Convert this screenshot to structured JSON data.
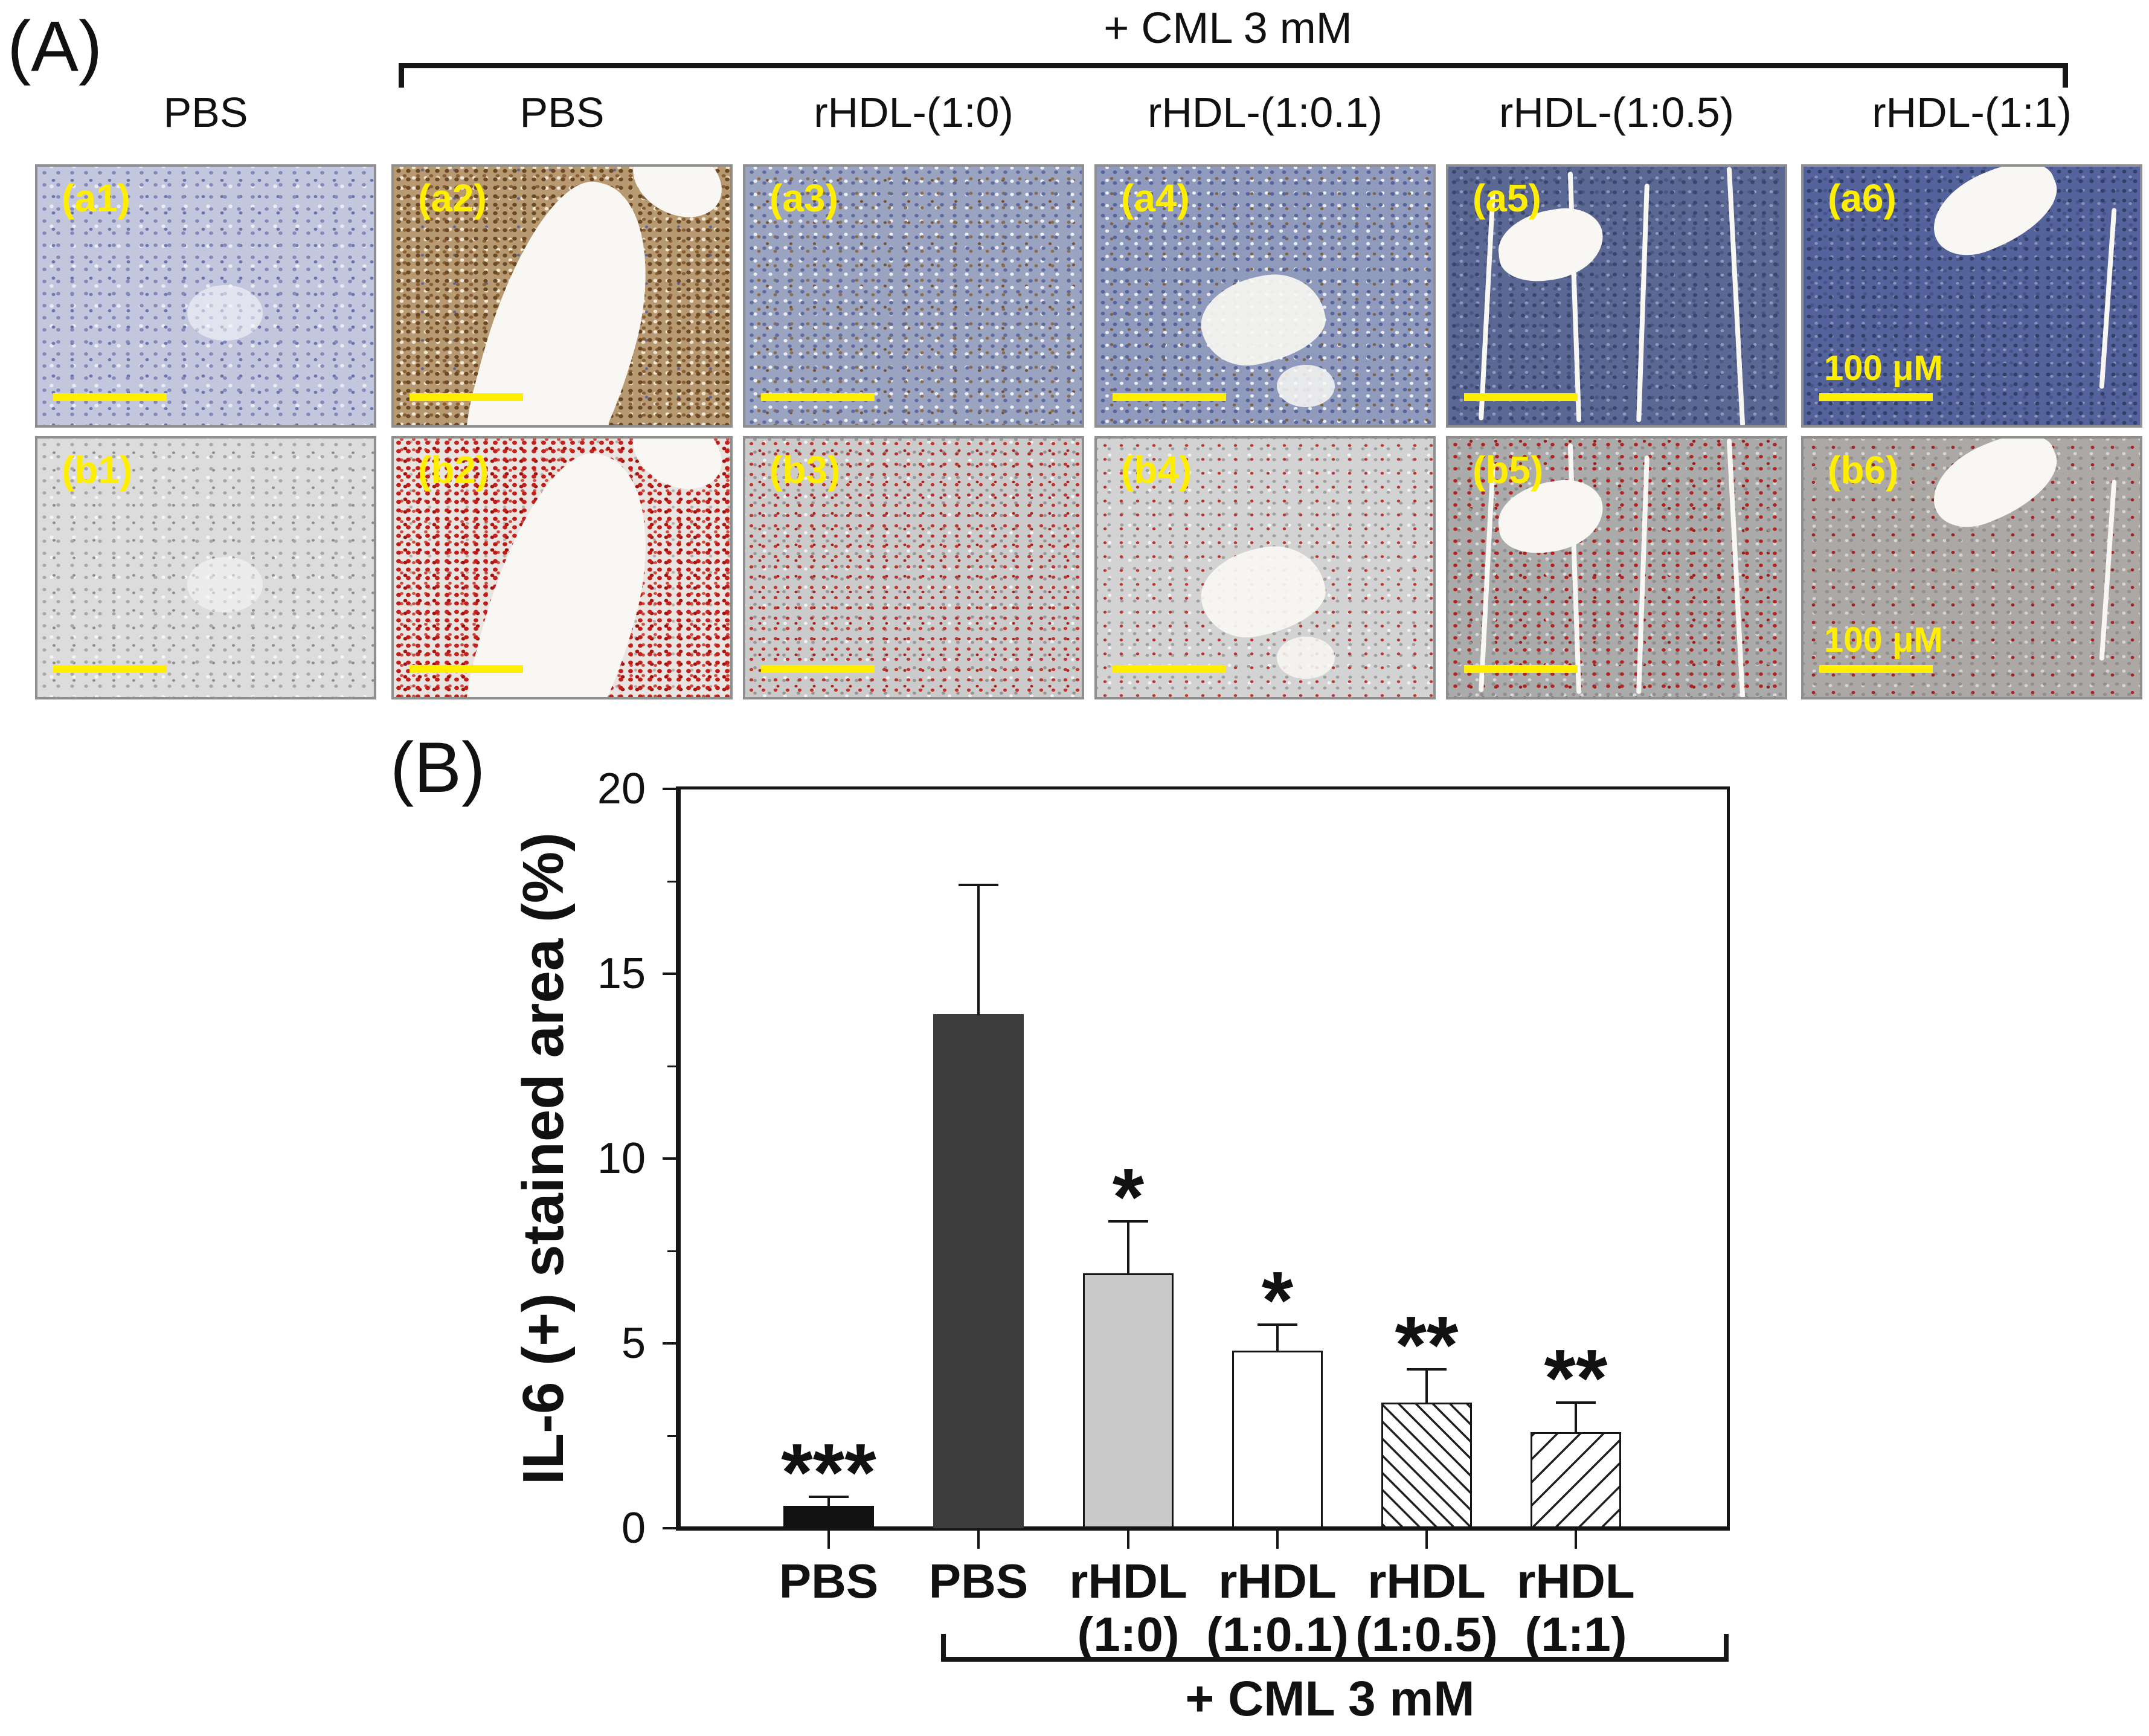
{
  "panel_a": {
    "label": "(A)",
    "group_label": "+ CML 3 mM",
    "column_headers": [
      "PBS",
      "PBS",
      "rHDL-(1:0)",
      "rHDL-(1:0.1)",
      "rHDL-(1:0.5)",
      "rHDL-(1:1)"
    ],
    "scale_bar_text": "100 μM",
    "rows": [
      {
        "id": "a",
        "cells": [
          {
            "id": "a1",
            "label": "(a1)"
          },
          {
            "id": "a2",
            "label": "(a2)"
          },
          {
            "id": "a3",
            "label": "(a3)"
          },
          {
            "id": "a4",
            "label": "(a4)"
          },
          {
            "id": "a5",
            "label": "(a5)"
          },
          {
            "id": "a6",
            "label": "(a6)",
            "show_scale_text": true
          }
        ]
      },
      {
        "id": "b",
        "cells": [
          {
            "id": "b1",
            "label": "(b1)"
          },
          {
            "id": "b2",
            "label": "(b2)"
          },
          {
            "id": "b3",
            "label": "(b3)"
          },
          {
            "id": "b4",
            "label": "(b4)"
          },
          {
            "id": "b5",
            "label": "(b5)"
          },
          {
            "id": "b6",
            "label": "(b6)",
            "show_scale_text": true
          }
        ]
      }
    ],
    "colors": {
      "annotation_yellow": "#ffee00"
    }
  },
  "panel_b": {
    "label": "(B)"
  },
  "chart_data": {
    "type": "bar",
    "title": "",
    "ylabel": "IL-6 (+) stained area (%)",
    "xlabel": "",
    "ylim": [
      0,
      20
    ],
    "yticks": [
      0,
      5,
      10,
      15,
      20
    ],
    "minor_yticks": [
      2.5,
      7.5,
      12.5,
      17.5
    ],
    "categories_line1": [
      "PBS",
      "PBS",
      "rHDL",
      "rHDL",
      "rHDL",
      "rHDL"
    ],
    "categories_line2": [
      "",
      "",
      "(1:0)",
      "(1:0.1)",
      "(1:0.5)",
      "(1:1)"
    ],
    "values": [
      0.6,
      13.9,
      6.9,
      4.8,
      3.4,
      2.6
    ],
    "errors": [
      0.25,
      3.5,
      1.4,
      0.7,
      0.9,
      0.8
    ],
    "significance": [
      "***",
      "",
      "*",
      "*",
      "**",
      "**"
    ],
    "bar_styles": [
      "solid-black",
      "solid-dark-gray",
      "solid-light-gray",
      "white-outlined",
      "hatch-backslash",
      "hatch-slash"
    ],
    "bar_colors": {
      "solid-black": "#111111",
      "solid-dark-gray": "#3d3d3d",
      "solid-light-gray": "#c9c9c9",
      "white-outlined": "#ffffff"
    },
    "group_bracket": {
      "label": "+ CML 3 mM",
      "start_category_index": 1,
      "end_category_index": 5
    },
    "legend": false,
    "grid": false,
    "frame": "box"
  }
}
